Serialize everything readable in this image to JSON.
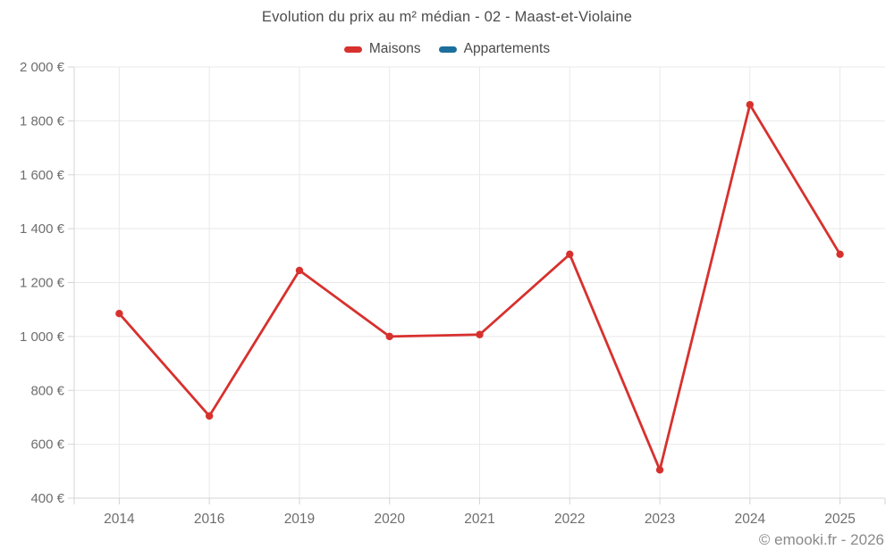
{
  "title": "Evolution du prix au m² médian - 02 - Maast-et-Violaine",
  "watermark": "© emooki.fr - 2026",
  "colors": {
    "maisons": "#d7312e",
    "appartements": "#1c6e9c",
    "grid": "#e9e9e9",
    "axis": "#d4d4d4",
    "axis_label": "#6e6e6e",
    "title_text": "#4c4c4c",
    "watermark_text": "#8a8a8a"
  },
  "legend": {
    "items": [
      {
        "label": "Maisons",
        "color": "#d7312e"
      },
      {
        "label": "Appartements",
        "color": "#1c6e9c"
      }
    ]
  },
  "chart_data": {
    "type": "line",
    "title": "Evolution du prix au m² médian - 02 - Maast-et-Violaine",
    "categories": [
      "2014",
      "2016",
      "2019",
      "2020",
      "2021",
      "2022",
      "2023",
      "2024",
      "2025"
    ],
    "series": [
      {
        "name": "Maisons",
        "color": "#d7312e",
        "values": [
          1085,
          705,
          1245,
          1000,
          1007,
          1305,
          505,
          1860,
          1305
        ]
      },
      {
        "name": "Appartements",
        "color": "#1c6e9c",
        "values": []
      }
    ],
    "xlabel": "",
    "ylabel": "",
    "ylim": [
      400,
      2000
    ],
    "yticks": [
      400,
      600,
      800,
      1000,
      1200,
      1400,
      1600,
      1800,
      2000
    ],
    "ytick_suffix": " €",
    "grid": true,
    "legend_position": "top",
    "marker": "circle"
  }
}
